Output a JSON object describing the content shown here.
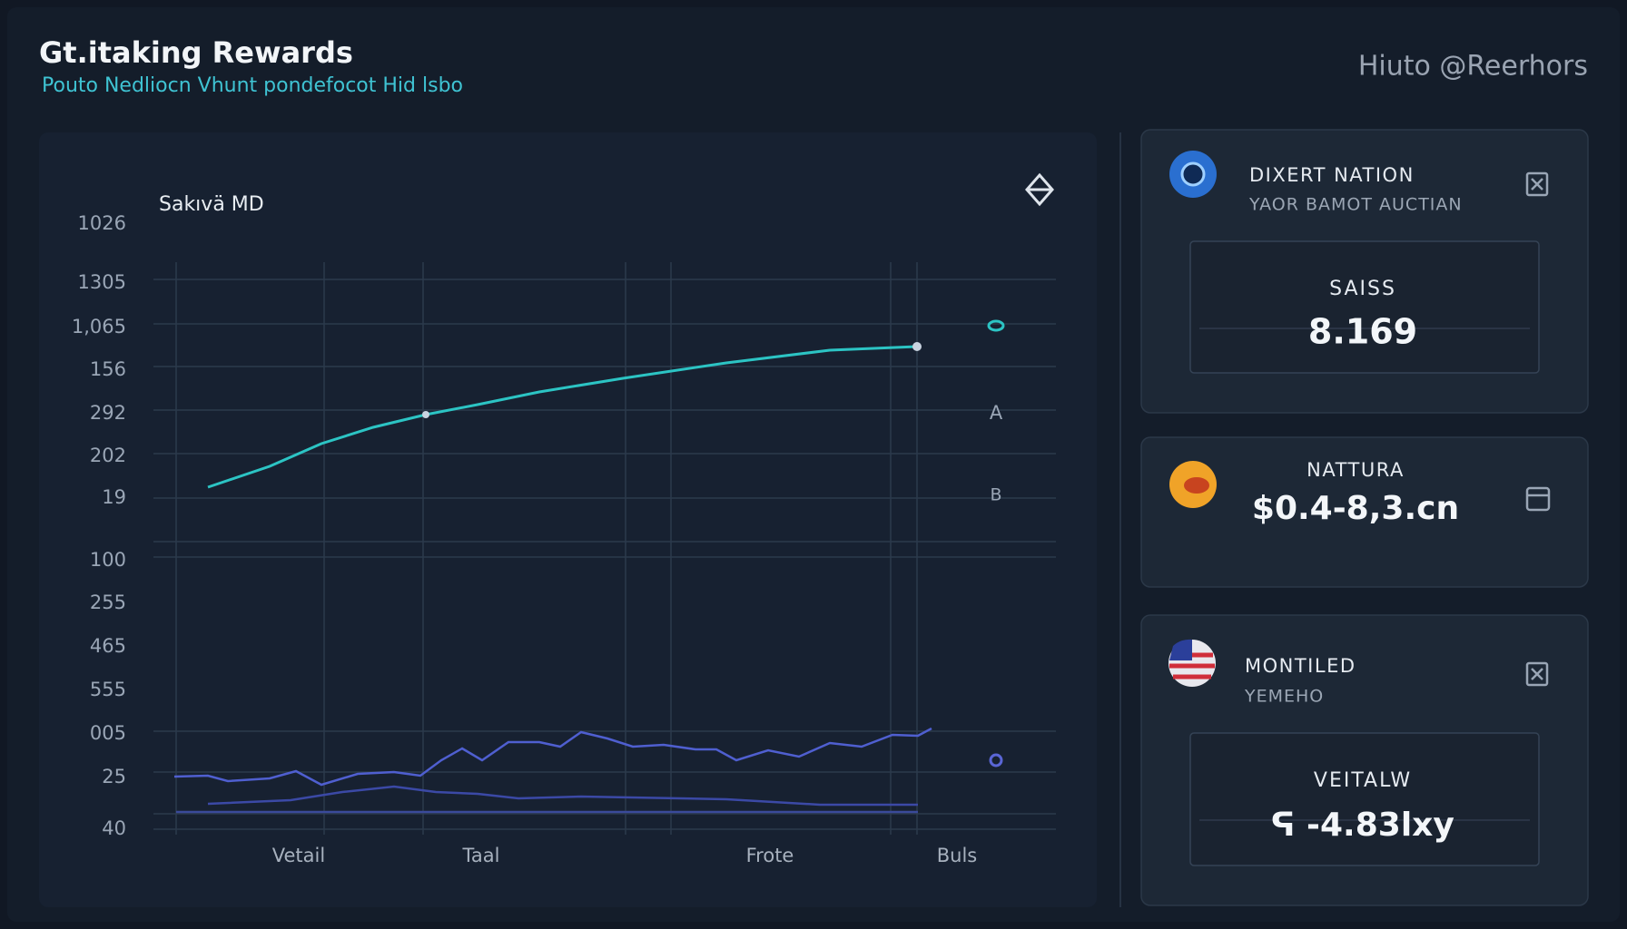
{
  "header": {
    "title": "Gt.itaking Rewards",
    "subtitle": "Pouto Nedliocn Vhunt pondefocot Hid lsbo",
    "account": "Hiuto @Reerhors"
  },
  "chart_panel": {
    "title": "Sakıvä MD",
    "y_labels": [
      "1026",
      "1305",
      "1,065",
      "156",
      "292",
      "202",
      "19",
      "100",
      "255",
      "465",
      "555",
      "005",
      "25",
      "40"
    ],
    "x_labels": [
      "Vetail",
      "Taal",
      "Frote",
      "Buls"
    ],
    "legend": [
      "A",
      "B"
    ]
  },
  "cards": [
    {
      "title": "DIXERT NATION",
      "subtitle": "YAOR BAMOT AUCTIAN",
      "label": "SAISS",
      "value": "8.169"
    },
    {
      "title": "NATTURA",
      "value": "$0.4-8,3.cn"
    },
    {
      "title": "MONTILED",
      "subtitle": "YEMEHO",
      "label": "VEITALW",
      "value": "ᕋ -4.83lxy"
    }
  ]
}
